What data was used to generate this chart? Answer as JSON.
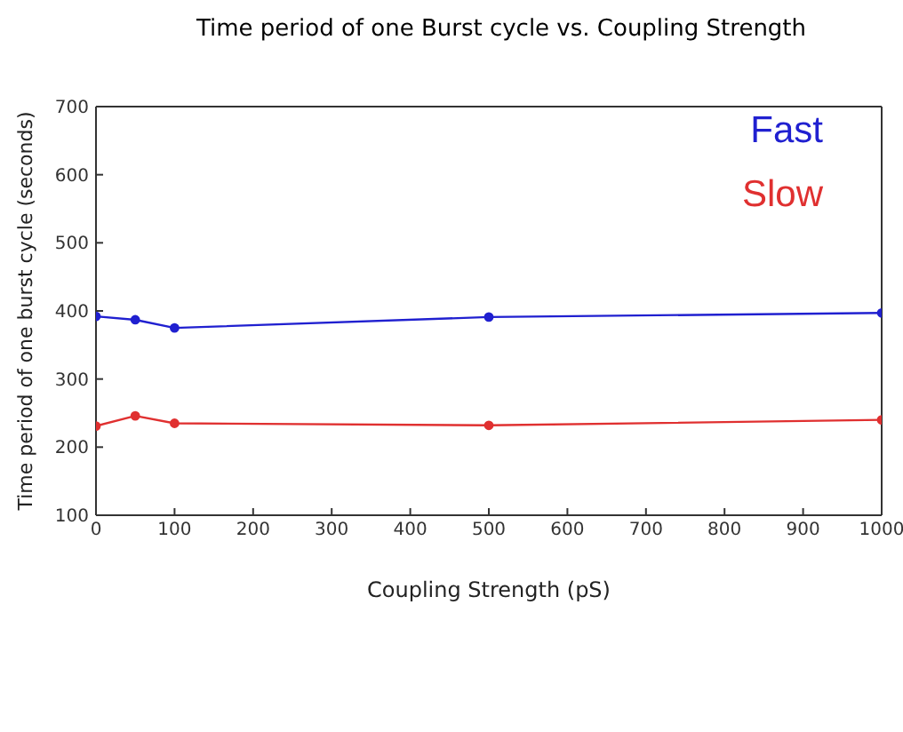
{
  "chart_data": {
    "type": "line",
    "title": "Time period of one Burst cycle vs. Coupling Strength",
    "xlabel": "Coupling Strength (pS)",
    "ylabel": "Time period of one burst cycle (seconds)",
    "x": [
      0,
      50,
      100,
      500,
      1000
    ],
    "series": [
      {
        "name": "Fast",
        "color": "#2020d0",
        "values": [
          392,
          387,
          375,
          391,
          397
        ]
      },
      {
        "name": "Slow",
        "color": "#e03030",
        "values": [
          231,
          246,
          235,
          232,
          240
        ]
      }
    ],
    "xlim": [
      0,
      1000
    ],
    "xticks": [
      0,
      100,
      200,
      300,
      400,
      500,
      600,
      700,
      800,
      900,
      1000
    ],
    "ylim": [
      100,
      700
    ],
    "yticks": [
      100,
      200,
      300,
      400,
      500,
      600,
      700
    ],
    "grid": false,
    "legend": "top right",
    "marker": "circle",
    "line_style": "solid"
  }
}
